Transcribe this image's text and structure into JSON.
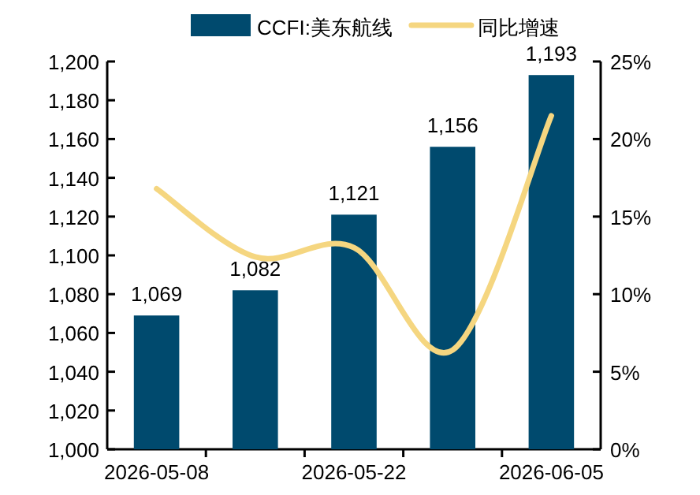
{
  "chart_data": {
    "type": "bar",
    "categories": [
      "2026-05-08",
      null,
      "2026-05-22",
      null,
      "2026-06-05"
    ],
    "series": [
      {
        "name": "CCFI:美东航线",
        "color": "#004a6e",
        "values": [
          1069,
          1082,
          1121,
          1156,
          1193
        ],
        "value_labels": [
          "1,069",
          "1,082",
          "1,121",
          "1,156",
          "1,193"
        ]
      },
      {
        "name": "同比增速",
        "type": "line",
        "axis": "y2",
        "color": "#f5d680",
        "values": [
          16.8,
          12.4,
          13.0,
          6.4,
          21.5
        ]
      }
    ],
    "ylim": [
      1000,
      1200
    ],
    "yticks": [
      {
        "value": 1000,
        "label": "1,000"
      },
      {
        "value": 1020,
        "label": "1,020"
      },
      {
        "value": 1040,
        "label": "1,040"
      },
      {
        "value": 1060,
        "label": "1,060"
      },
      {
        "value": 1080,
        "label": "1,080"
      },
      {
        "value": 1100,
        "label": "1,100"
      },
      {
        "value": 1120,
        "label": "1,120"
      },
      {
        "value": 1140,
        "label": "1,140"
      },
      {
        "value": 1160,
        "label": "1,160"
      },
      {
        "value": 1180,
        "label": "1,180"
      },
      {
        "value": 1200,
        "label": "1,200"
      }
    ],
    "y2lim": [
      0,
      25
    ],
    "y2ticks": [
      {
        "value": 0,
        "label": "0%"
      },
      {
        "value": 5,
        "label": "5%"
      },
      {
        "value": 10,
        "label": "10%"
      },
      {
        "value": 15,
        "label": "15%"
      },
      {
        "value": 20,
        "label": "20%"
      },
      {
        "value": 25,
        "label": "25%"
      }
    ],
    "legend": "top",
    "grid": false
  }
}
